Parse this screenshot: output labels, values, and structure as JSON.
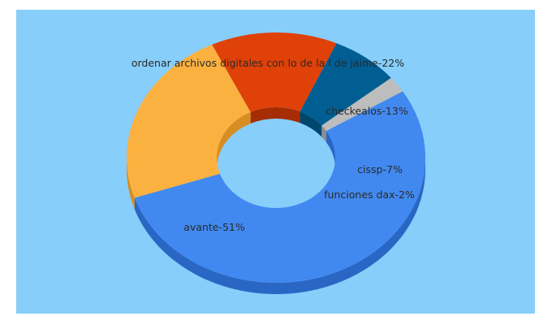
{
  "chart_data": {
    "type": "pie",
    "style": "3d-donut",
    "background_color": "#87cefa",
    "slices": [
      {
        "label": "avante-51%",
        "value": 51,
        "color": "#4189f0",
        "side_color": "#2a66c4"
      },
      {
        "label": "ordenar archivos digitales con lo de la l de jaime-22%",
        "value": 22,
        "color": "#fbb13f",
        "side_color": "#d88d22"
      },
      {
        "label": "checkealos-13%",
        "value": 13,
        "color": "#e04108",
        "side_color": "#a52c03"
      },
      {
        "label": "cissp-7%",
        "value": 7,
        "color": "#005e92",
        "side_color": "#00476e"
      },
      {
        "label": "funciones dax-2%",
        "value": 2,
        "color": "#bdbdbd",
        "side_color": "#8d8d8d"
      }
    ]
  }
}
